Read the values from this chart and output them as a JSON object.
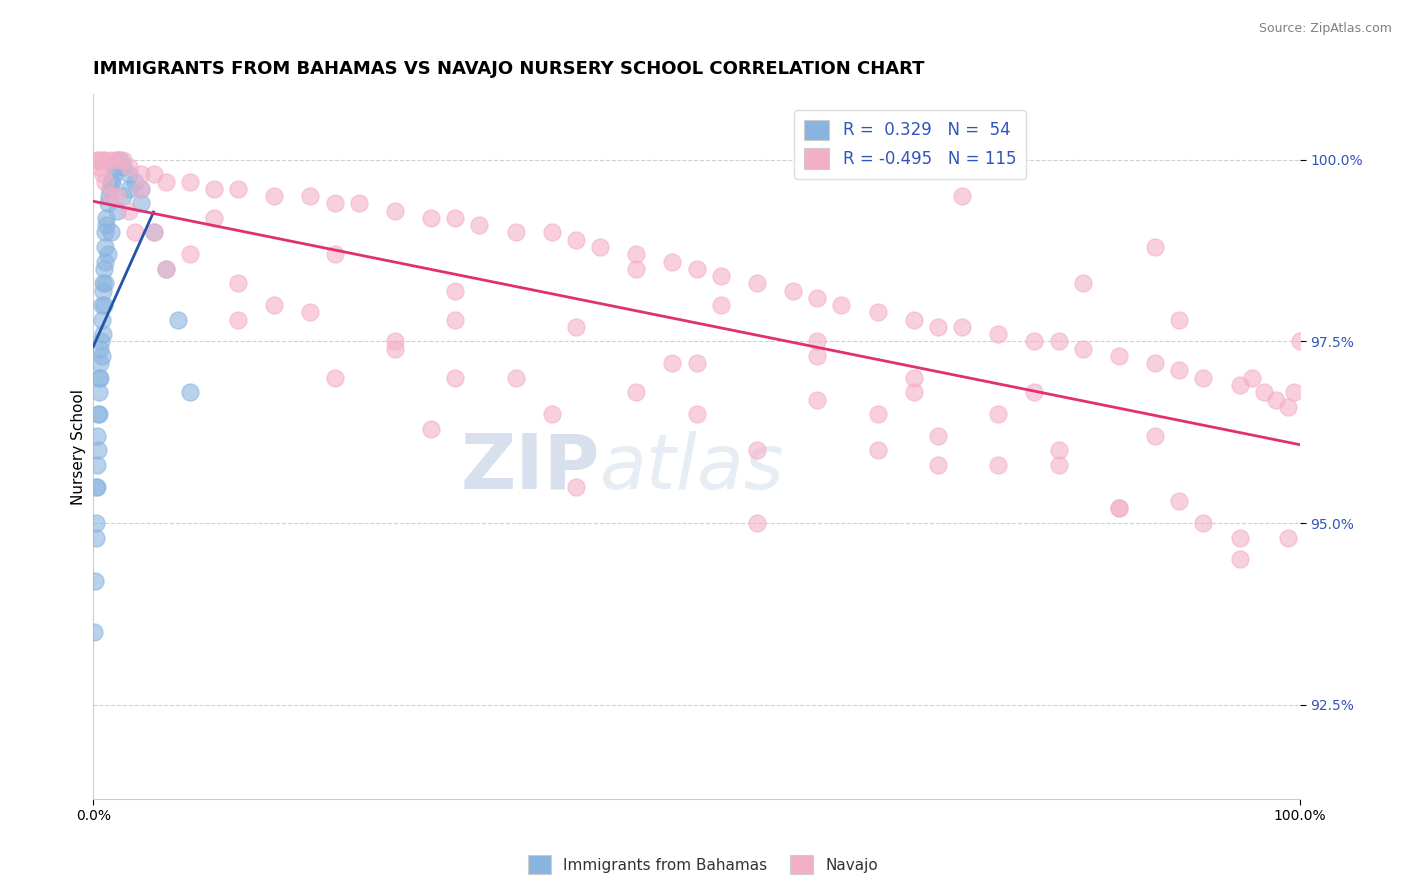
{
  "title": "IMMIGRANTS FROM BAHAMAS VS NAVAJO NURSERY SCHOOL CORRELATION CHART",
  "source": "Source: ZipAtlas.com",
  "ylabel": "Nursery School",
  "ytick_labels": [
    "92.5%",
    "95.0%",
    "97.5%",
    "100.0%"
  ],
  "ytick_values": [
    92.5,
    95.0,
    97.5,
    100.0
  ],
  "xmin": 0.0,
  "xmax": 100.0,
  "ymin": 91.2,
  "ymax": 100.9,
  "legend_r1": "R =  0.329",
  "legend_n1": "N = 54",
  "legend_r2": "R = -0.495",
  "legend_n2": "N = 115",
  "blue_color": "#8ab4e0",
  "pink_color": "#f4afc8",
  "blue_line_color": "#2255aa",
  "pink_line_color": "#e03070",
  "title_fontsize": 13,
  "axis_label_fontsize": 11,
  "tick_label_fontsize": 10,
  "legend_fontsize": 12,
  "blue_x": [
    0.1,
    0.15,
    0.2,
    0.25,
    0.3,
    0.35,
    0.4,
    0.45,
    0.5,
    0.55,
    0.6,
    0.65,
    0.7,
    0.75,
    0.8,
    0.85,
    0.9,
    0.95,
    1.0,
    1.0,
    1.05,
    1.1,
    1.2,
    1.3,
    1.4,
    1.5,
    1.6,
    1.7,
    1.8,
    2.0,
    2.2,
    2.5,
    3.0,
    3.5,
    4.0,
    0.2,
    0.3,
    0.4,
    0.5,
    0.6,
    0.7,
    0.8,
    0.9,
    1.0,
    1.2,
    1.5,
    2.0,
    2.5,
    3.0,
    4.0,
    5.0,
    6.0,
    7.0,
    8.0
  ],
  "blue_y": [
    93.5,
    94.2,
    95.0,
    95.5,
    95.8,
    96.2,
    96.5,
    96.8,
    97.0,
    97.2,
    97.4,
    97.5,
    97.8,
    98.0,
    98.2,
    98.3,
    98.5,
    98.6,
    98.8,
    99.0,
    99.1,
    99.2,
    99.4,
    99.5,
    99.6,
    99.7,
    99.7,
    99.8,
    99.9,
    100.0,
    100.0,
    99.9,
    99.8,
    99.7,
    99.6,
    94.8,
    95.5,
    96.0,
    96.5,
    97.0,
    97.3,
    97.6,
    98.0,
    98.3,
    98.7,
    99.0,
    99.3,
    99.5,
    99.6,
    99.4,
    99.0,
    98.5,
    97.8,
    96.8
  ],
  "pink_x": [
    0.3,
    0.5,
    0.8,
    1.0,
    1.5,
    2.0,
    2.5,
    3.0,
    4.0,
    5.0,
    6.0,
    8.0,
    10.0,
    12.0,
    15.0,
    18.0,
    20.0,
    22.0,
    25.0,
    28.0,
    30.0,
    32.0,
    35.0,
    38.0,
    40.0,
    42.0,
    45.0,
    48.0,
    50.0,
    52.0,
    55.0,
    58.0,
    60.0,
    62.0,
    65.0,
    68.0,
    70.0,
    72.0,
    75.0,
    78.0,
    80.0,
    82.0,
    85.0,
    88.0,
    90.0,
    92.0,
    95.0,
    97.0,
    98.0,
    99.0,
    100.0,
    0.5,
    1.0,
    2.0,
    3.0,
    5.0,
    8.0,
    12.0,
    18.0,
    25.0,
    30.0,
    38.0,
    45.0,
    52.0,
    60.0,
    68.0,
    75.0,
    82.0,
    90.0,
    96.0,
    4.0,
    10.0,
    20.0,
    30.0,
    40.0,
    50.0,
    60.0,
    70.0,
    80.0,
    90.0,
    99.0,
    15.0,
    35.0,
    55.0,
    72.0,
    88.0,
    25.0,
    45.0,
    65.0,
    85.0,
    0.8,
    1.5,
    3.5,
    6.0,
    12.0,
    20.0,
    28.0,
    40.0,
    55.0,
    68.0,
    80.0,
    92.0,
    50.0,
    70.0,
    85.0,
    95.0,
    60.0,
    78.0,
    88.0,
    30.0,
    48.0,
    65.0,
    75.0,
    95.0,
    99.5
  ],
  "pink_y": [
    100.0,
    100.0,
    100.0,
    100.0,
    100.0,
    100.0,
    100.0,
    99.9,
    99.8,
    99.8,
    99.7,
    99.7,
    99.6,
    99.6,
    99.5,
    99.5,
    99.4,
    99.4,
    99.3,
    99.2,
    99.2,
    99.1,
    99.0,
    99.0,
    98.9,
    98.8,
    98.7,
    98.6,
    98.5,
    98.4,
    98.3,
    98.2,
    98.1,
    98.0,
    97.9,
    97.8,
    97.7,
    97.7,
    97.6,
    97.5,
    97.5,
    97.4,
    97.3,
    97.2,
    97.1,
    97.0,
    96.9,
    96.8,
    96.7,
    96.6,
    97.5,
    99.9,
    99.7,
    99.5,
    99.3,
    99.0,
    98.7,
    98.3,
    97.9,
    97.4,
    97.0,
    96.5,
    98.5,
    98.0,
    97.5,
    97.0,
    96.5,
    98.3,
    97.8,
    97.0,
    99.6,
    99.2,
    98.7,
    98.2,
    97.7,
    97.2,
    96.7,
    96.2,
    95.8,
    95.3,
    94.8,
    98.0,
    97.0,
    96.0,
    99.5,
    98.8,
    97.5,
    96.8,
    96.0,
    95.2,
    99.8,
    99.5,
    99.0,
    98.5,
    97.8,
    97.0,
    96.3,
    95.5,
    95.0,
    96.8,
    96.0,
    95.0,
    96.5,
    95.8,
    95.2,
    94.8,
    97.3,
    96.8,
    96.2,
    97.8,
    97.2,
    96.5,
    95.8,
    94.5,
    96.8
  ]
}
